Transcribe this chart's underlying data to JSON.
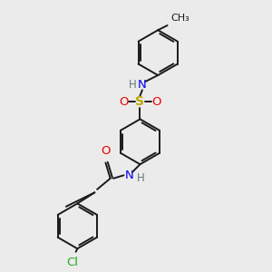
{
  "bg_color": "#ebebeb",
  "bond_color": "#1a1a1a",
  "bond_width": 1.4,
  "colors": {
    "N": "#0000ee",
    "O": "#ee0000",
    "S": "#bbaa00",
    "Cl": "#22aa22",
    "H": "#667777",
    "C": "#1a1a1a",
    "Me": "#1a1a1a"
  },
  "font_size": 8.5
}
